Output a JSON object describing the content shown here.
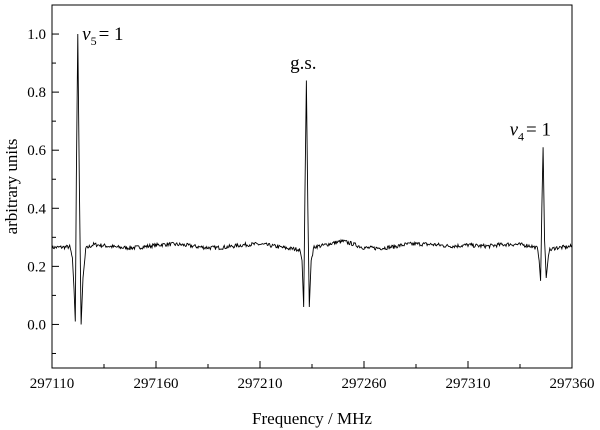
{
  "chart_data": {
    "type": "line",
    "xlabel": "Frequency / MHz",
    "ylabel": "arbitrary units",
    "xlim": [
      297110,
      297360
    ],
    "ylim": [
      -0.15,
      1.1
    ],
    "xticks": [
      297110,
      297160,
      297210,
      297260,
      297310,
      297360
    ],
    "yticks": [
      0.0,
      0.2,
      0.4,
      0.6,
      0.8,
      1.0
    ],
    "xtick_labels": [
      "297110",
      "297160",
      "297210",
      "297260",
      "297310",
      "297360"
    ],
    "ytick_labels": [
      "0.0",
      "0.2",
      "0.4",
      "0.6",
      "0.8",
      "1.0"
    ],
    "grid": false,
    "baseline": 0.27,
    "series": [
      {
        "x": [
          297110,
          297118.5,
          297119.8,
          297120.6,
          297121.2,
          297121.7,
          297122.4,
          297123.2,
          297124.0,
          297124.9,
          297126.2,
          297130,
          297150,
          297170,
          297190,
          297210,
          297229.0,
          297230.2,
          297231.0,
          297231.6,
          297232.3,
          297233.0,
          297233.7,
          297234.6,
          297236.0,
          297240,
          297250,
          297260,
          297270,
          297280,
          297290,
          297300,
          297310,
          297320,
          297330,
          297340,
          297343.3,
          297344.2,
          297344.9,
          297345.5,
          297346.1,
          297346.8,
          297347.6,
          297349.0,
          297352,
          297360
        ],
        "y": [
          0.27,
          0.265,
          0.23,
          0.12,
          0.01,
          0.5,
          1.0,
          0.45,
          0.0,
          0.16,
          0.255,
          0.27,
          0.27,
          0.27,
          0.27,
          0.27,
          0.265,
          0.22,
          0.06,
          0.45,
          0.84,
          0.4,
          0.06,
          0.22,
          0.27,
          0.27,
          0.28,
          0.265,
          0.27,
          0.275,
          0.27,
          0.27,
          0.28,
          0.27,
          0.27,
          0.27,
          0.265,
          0.22,
          0.15,
          0.4,
          0.61,
          0.3,
          0.16,
          0.26,
          0.27,
          0.27
        ]
      }
    ],
    "annotations": [
      {
        "x": 297124.5,
        "y": 0.98,
        "text": "v",
        "sub": "5",
        "suffix": "= 1"
      },
      {
        "x": 297224.5,
        "y": 0.88,
        "text": "g.s.",
        "sub": "",
        "suffix": ""
      },
      {
        "x": 297330.0,
        "y": 0.65,
        "text": "v",
        "sub": "4",
        "suffix": "= 1"
      }
    ]
  }
}
